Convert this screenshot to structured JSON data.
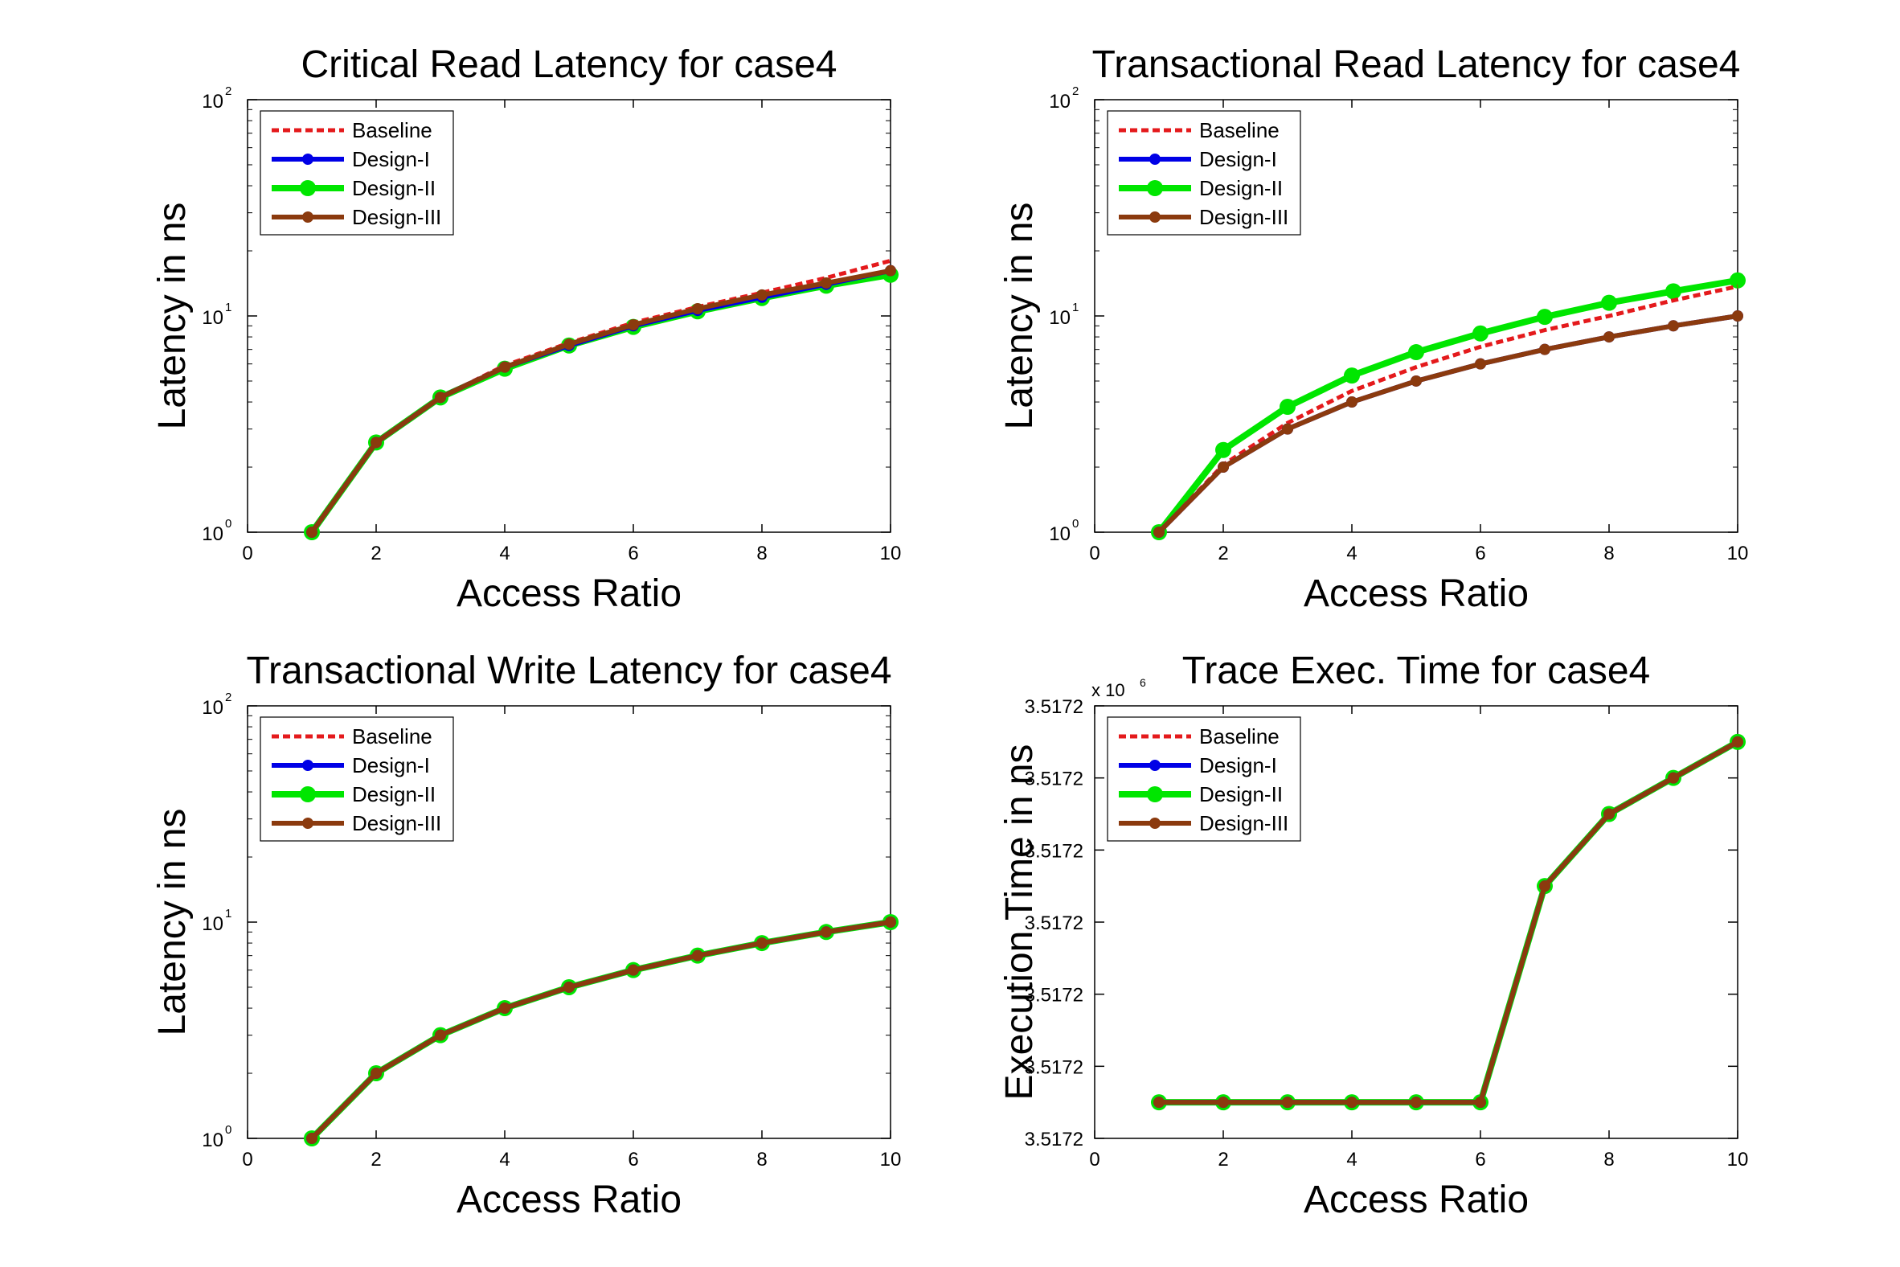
{
  "chart_data": [
    {
      "type": "line",
      "title": "Critical Read Latency for case4",
      "xlabel": "Access Ratio",
      "ylabel": "Latency in ns",
      "yscale": "log",
      "xlim": [
        0,
        10
      ],
      "ylim": [
        1,
        100
      ],
      "xticks": [
        0,
        2,
        4,
        6,
        8,
        10
      ],
      "xtick_labels": [
        "0",
        "2",
        "4",
        "6",
        "8",
        "10"
      ],
      "yticks": [
        1,
        10,
        100
      ],
      "ytick_labels": [
        {
          "base": "10",
          "exp": "0"
        },
        {
          "base": "10",
          "exp": "1"
        },
        {
          "base": "10",
          "exp": "2"
        }
      ],
      "grid": false,
      "legend_position": "top-left",
      "x": [
        1,
        2,
        3,
        4,
        5,
        6,
        7,
        8,
        9,
        10
      ],
      "series": [
        {
          "name": "Baseline",
          "values": [
            1.0,
            2.6,
            4.2,
            5.9,
            7.5,
            9.3,
            11.0,
            12.8,
            15.0,
            18.0
          ]
        },
        {
          "name": "Design-I",
          "values": [
            1.0,
            2.6,
            4.2,
            5.8,
            7.3,
            9.0,
            10.6,
            12.2,
            14.0,
            16.2
          ]
        },
        {
          "name": "Design-II",
          "values": [
            1.0,
            2.6,
            4.2,
            5.7,
            7.3,
            8.9,
            10.5,
            12.1,
            13.8,
            15.5
          ]
        },
        {
          "name": "Design-III",
          "values": [
            1.0,
            2.6,
            4.2,
            5.8,
            7.4,
            9.1,
            10.8,
            12.5,
            14.2,
            16.2
          ]
        }
      ]
    },
    {
      "type": "line",
      "title": "Transactional Read Latency for case4",
      "xlabel": "Access Ratio",
      "ylabel": "Latency in ns",
      "yscale": "log",
      "xlim": [
        0,
        10
      ],
      "ylim": [
        1,
        100
      ],
      "xticks": [
        0,
        2,
        4,
        6,
        8,
        10
      ],
      "xtick_labels": [
        "0",
        "2",
        "4",
        "6",
        "8",
        "10"
      ],
      "yticks": [
        1,
        10,
        100
      ],
      "ytick_labels": [
        {
          "base": "10",
          "exp": "0"
        },
        {
          "base": "10",
          "exp": "1"
        },
        {
          "base": "10",
          "exp": "2"
        }
      ],
      "grid": false,
      "legend_position": "top-left",
      "x": [
        1,
        2,
        3,
        4,
        5,
        6,
        7,
        8,
        9,
        10
      ],
      "series": [
        {
          "name": "Baseline",
          "values": [
            1.0,
            2.05,
            3.2,
            4.5,
            5.8,
            7.2,
            8.6,
            10.0,
            11.8,
            13.7
          ]
        },
        {
          "name": "Design-I",
          "values": [
            1.0,
            2.0,
            3.0,
            4.0,
            5.0,
            6.0,
            7.0,
            8.0,
            9.0,
            10.0
          ]
        },
        {
          "name": "Design-II",
          "values": [
            1.0,
            2.4,
            3.8,
            5.3,
            6.8,
            8.3,
            9.9,
            11.5,
            13.0,
            14.6
          ]
        },
        {
          "name": "Design-III",
          "values": [
            1.0,
            2.0,
            3.0,
            4.0,
            5.0,
            6.0,
            7.0,
            8.0,
            9.0,
            10.0
          ]
        }
      ]
    },
    {
      "type": "line",
      "title": "Transactional Write Latency for case4",
      "xlabel": "Access Ratio",
      "ylabel": "Latency in ns",
      "yscale": "log",
      "xlim": [
        0,
        10
      ],
      "ylim": [
        1,
        100
      ],
      "xticks": [
        0,
        2,
        4,
        6,
        8,
        10
      ],
      "xtick_labels": [
        "0",
        "2",
        "4",
        "6",
        "8",
        "10"
      ],
      "yticks": [
        1,
        10,
        100
      ],
      "ytick_labels": [
        {
          "base": "10",
          "exp": "0"
        },
        {
          "base": "10",
          "exp": "1"
        },
        {
          "base": "10",
          "exp": "2"
        }
      ],
      "grid": false,
      "legend_position": "top-left",
      "x": [
        1,
        2,
        3,
        4,
        5,
        6,
        7,
        8,
        9,
        10
      ],
      "series": [
        {
          "name": "Baseline",
          "values": [
            1.0,
            2.0,
            3.0,
            4.0,
            5.0,
            6.0,
            7.0,
            8.0,
            9.0,
            10.0
          ]
        },
        {
          "name": "Design-I",
          "values": [
            1.0,
            2.0,
            3.0,
            4.0,
            5.0,
            6.0,
            7.0,
            8.0,
            9.0,
            10.0
          ]
        },
        {
          "name": "Design-II",
          "values": [
            1.0,
            2.0,
            3.0,
            4.0,
            5.0,
            6.0,
            7.0,
            8.0,
            9.0,
            10.0
          ]
        },
        {
          "name": "Design-III",
          "values": [
            1.0,
            2.0,
            3.0,
            4.0,
            5.0,
            6.0,
            7.0,
            8.0,
            9.0,
            10.0
          ]
        }
      ]
    },
    {
      "type": "line",
      "title": "Trace Exec. Time for case4",
      "xlabel": "Access Ratio",
      "ylabel": "Execution Time in ns",
      "yscale": "linear",
      "axis_multiplier": {
        "base": "x 10",
        "exp": "6"
      },
      "xlim": [
        0,
        10
      ],
      "ylim": [
        0,
        6
      ],
      "xticks": [
        0,
        2,
        4,
        6,
        8,
        10
      ],
      "xtick_labels": [
        "0",
        "2",
        "4",
        "6",
        "8",
        "10"
      ],
      "yticks": [
        0,
        1,
        2,
        3,
        4,
        5,
        6
      ],
      "ytick_labels": [
        "3.5172",
        "3.5172",
        "3.5172",
        "3.5172",
        "3.5172",
        "3.5172",
        "3.5172"
      ],
      "grid": false,
      "legend_position": "top-left",
      "x": [
        1,
        2,
        3,
        4,
        5,
        6,
        7,
        8,
        9,
        10
      ],
      "series": [
        {
          "name": "Baseline",
          "values": [
            0.5,
            0.5,
            0.5,
            0.5,
            0.5,
            0.5,
            3.5,
            4.5,
            5.0,
            5.5
          ]
        },
        {
          "name": "Design-I",
          "values": [
            0.5,
            0.5,
            0.5,
            0.5,
            0.5,
            0.5,
            3.5,
            4.5,
            5.0,
            5.5
          ]
        },
        {
          "name": "Design-II",
          "values": [
            0.5,
            0.5,
            0.5,
            0.5,
            0.5,
            0.5,
            3.5,
            4.5,
            5.0,
            5.5
          ]
        },
        {
          "name": "Design-III",
          "values": [
            0.5,
            0.5,
            0.5,
            0.5,
            0.5,
            0.5,
            3.5,
            4.5,
            5.0,
            5.5
          ]
        }
      ]
    }
  ],
  "series_styles": {
    "Baseline": {
      "color": "#e41a1c",
      "dash": "dotted",
      "marker": "none"
    },
    "Design-I": {
      "color": "#0000e6",
      "dash": "solid",
      "marker": "dot"
    },
    "Design-II": {
      "color": "#00e600",
      "dash": "solid",
      "marker": "circle"
    },
    "Design-III": {
      "color": "#8b3a0e",
      "dash": "solid",
      "marker": "dot"
    }
  }
}
